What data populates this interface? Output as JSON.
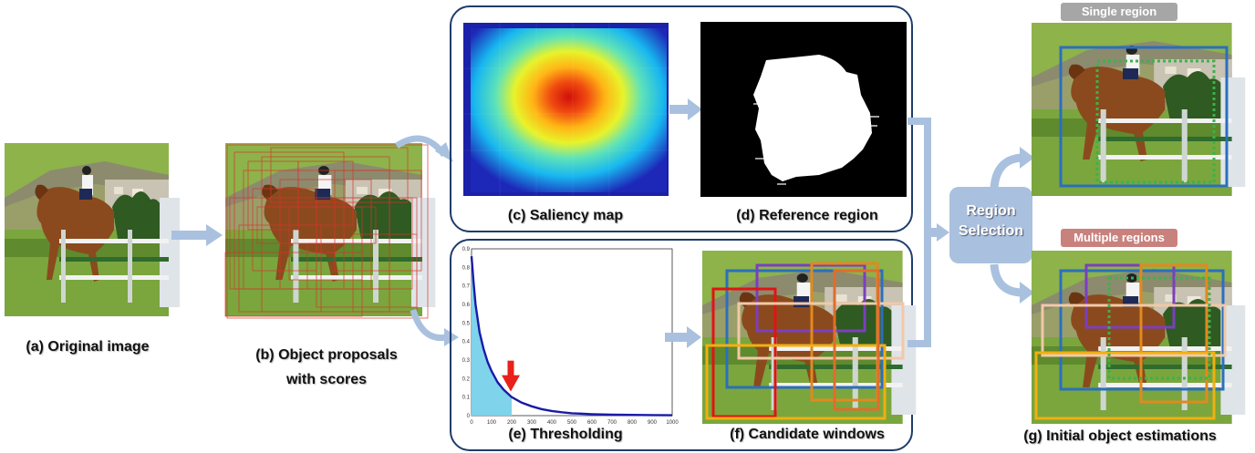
{
  "captions": {
    "a": "(a) Original image",
    "b_line1": "(b) Object proposals",
    "b_line2": "with scores",
    "c": "(c) Saliency map",
    "d": "(d) Reference region",
    "e": "(e) Thresholding",
    "f": "(f) Candidate windows",
    "g": "(g) Initial object estimations"
  },
  "region_selection": {
    "line1": "Region",
    "line2": "Selection"
  },
  "tags": {
    "single": "Single region",
    "multiple": "Multiple regions"
  },
  "colors": {
    "panel_border": "#1f3d6b",
    "arrow": "#a9c1df",
    "single_tag": "#a6a6a6",
    "multiple_tag": "#c9817d",
    "curve": "#1a1aa8",
    "fill": "#7fd3ea",
    "threshold_arrow": "#e8211a"
  },
  "chart_data": {
    "type": "line",
    "title": "",
    "xlabel": "",
    "ylabel": "",
    "xlim": [
      0,
      1000
    ],
    "ylim": [
      0,
      0.9
    ],
    "x_ticks": [
      "0",
      "100",
      "200",
      "300",
      "400",
      "500",
      "600",
      "700",
      "800",
      "900",
      "1000"
    ],
    "y_ticks": [
      "0",
      "0.1",
      "0.2",
      "0.3",
      "0.4",
      "0.5",
      "0.6",
      "0.7",
      "0.8",
      "0.9"
    ],
    "threshold_x": 200,
    "x": [
      0,
      10,
      20,
      40,
      60,
      80,
      100,
      130,
      160,
      200,
      250,
      300,
      350,
      400,
      450,
      500,
      600,
      700,
      800,
      900,
      1000
    ],
    "y": [
      0.86,
      0.72,
      0.6,
      0.45,
      0.36,
      0.29,
      0.24,
      0.18,
      0.14,
      0.1,
      0.07,
      0.05,
      0.035,
      0.025,
      0.018,
      0.013,
      0.008,
      0.005,
      0.004,
      0.003,
      0.002
    ]
  }
}
